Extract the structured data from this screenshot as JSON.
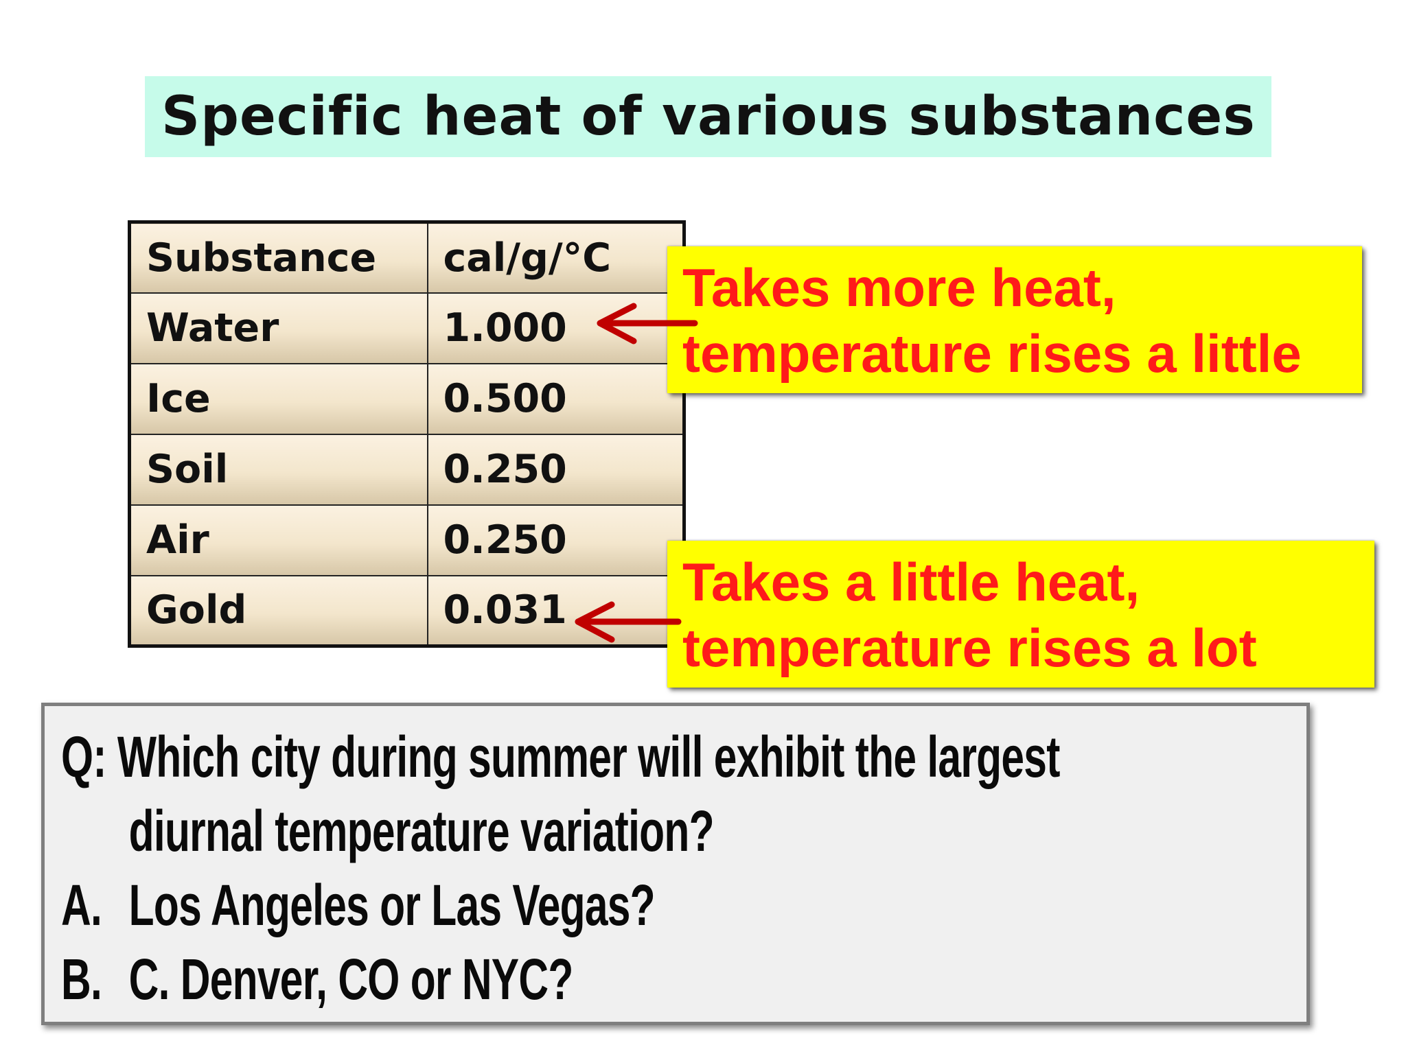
{
  "title": "Specific heat of various substances",
  "table": {
    "headers": [
      "Substance",
      "cal/g/°C"
    ],
    "rows": [
      [
        "Water",
        "1.000"
      ],
      [
        "Ice",
        "0.500"
      ],
      [
        "Soil",
        "0.250"
      ],
      [
        "Air",
        "0.250"
      ],
      [
        "Gold",
        "0.031"
      ]
    ]
  },
  "callouts": [
    {
      "line1": "Takes more heat,",
      "line2": "temperature rises a little"
    },
    {
      "line1": "Takes a little heat,",
      "line2": "temperature rises a lot"
    }
  ],
  "colors": {
    "title_background": "#c6fbea",
    "callout_background": "#ffff00",
    "callout_text": "#ff1a1a",
    "arrow": "#c00000",
    "question_background": "#f0f0f0"
  },
  "question": {
    "q_marker": "Q:",
    "q_line1": "Which city during summer will exhibit the largest",
    "q_line2": "diurnal temperature variation?",
    "options": [
      {
        "marker": "A.",
        "text": "Los Angeles or Las Vegas?"
      },
      {
        "marker": "B.",
        "text": "C. Denver, CO or NYC?"
      }
    ]
  }
}
